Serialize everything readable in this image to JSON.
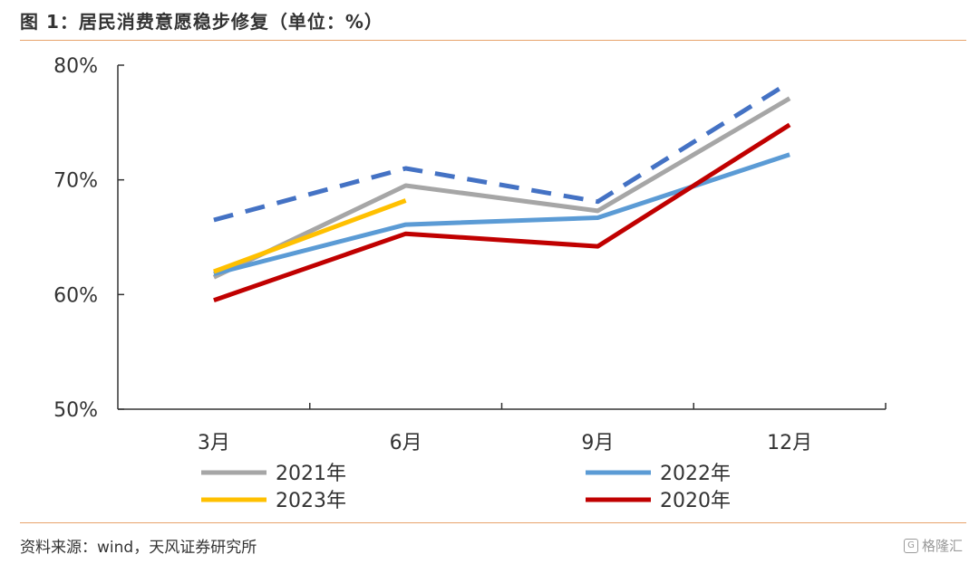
{
  "header": {
    "title": "图 1：居民消费意愿稳步修复（单位：%）"
  },
  "footer": {
    "source": "资料来源：wind，天风证券研究所",
    "watermark": "格隆汇"
  },
  "chart_data": {
    "type": "line",
    "categories": [
      "3月",
      "6月",
      "9月",
      "12月"
    ],
    "y_ticks": [
      "80%",
      "70%",
      "60%",
      "50%"
    ],
    "ylim": [
      50,
      80
    ],
    "series": [
      {
        "name": "2021年",
        "color": "#a6a6a6",
        "dashed": false,
        "values": [
          61.5,
          69.5,
          67.3,
          77.1
        ]
      },
      {
        "name": "2022年",
        "color": "#5b9bd5",
        "dashed": false,
        "values": [
          61.8,
          66.1,
          66.7,
          72.2
        ]
      },
      {
        "name": "2023年",
        "color": "#ffc000",
        "dashed": false,
        "values": [
          62.0,
          68.2,
          null,
          null
        ]
      },
      {
        "name": "2020年",
        "color": "#c00000",
        "dashed": false,
        "values": [
          59.5,
          65.3,
          64.2,
          74.8
        ]
      },
      {
        "name": "",
        "color": "#4472c4",
        "dashed": true,
        "values": [
          66.5,
          71.0,
          68.1,
          78.5
        ]
      }
    ],
    "legend": [
      "2021年",
      "2022年",
      "2023年",
      "2020年"
    ],
    "grid": false,
    "legend_position": "bottom"
  }
}
